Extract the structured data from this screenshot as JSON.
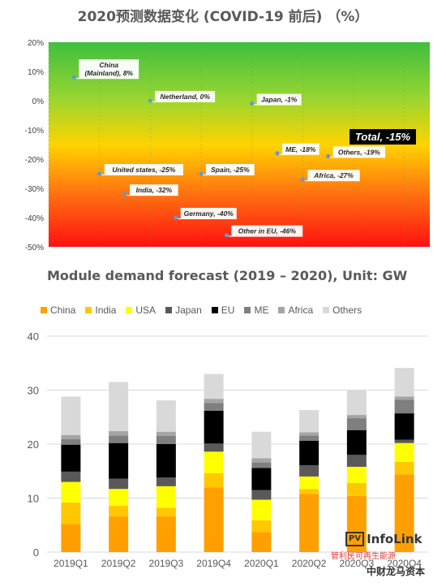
{
  "top": {
    "title": "2020预测数据变化 (COVID-19 前后) （%）",
    "chart_data": {
      "type": "scatter",
      "title": "2020预测数据变化 (COVID-19 前后) （%）",
      "ylim": [
        -50,
        20
      ],
      "y_ticks": [
        "20%",
        "10%",
        "0%",
        "-10%",
        "-20%",
        "-30%",
        "-40%",
        "-50%"
      ],
      "y_tick_values": [
        20,
        10,
        0,
        -10,
        -20,
        -30,
        -40,
        -50
      ],
      "x_ticks": [
        0,
        1,
        2,
        3,
        4,
        5,
        6,
        7
      ],
      "points": [
        {
          "label": "China\n(Mainland), 8%",
          "x": 0.5,
          "y": 8
        },
        {
          "label": "Netherland, 0%",
          "x": 2.0,
          "y": 0
        },
        {
          "label": "Japan, -1%",
          "x": 4.0,
          "y": -1
        },
        {
          "label": "ME, -18%",
          "x": 4.5,
          "y": -18
        },
        {
          "label": "Others, -19%",
          "x": 5.5,
          "y": -19
        },
        {
          "label": "Africa, -27%",
          "x": 5.0,
          "y": -27
        },
        {
          "label": "United states, -25%",
          "x": 1.0,
          "y": -25
        },
        {
          "label": "Spain, -25%",
          "x": 3.0,
          "y": -25
        },
        {
          "label": "India, -32%",
          "x": 1.5,
          "y": -32
        },
        {
          "label": "Germany, -40%",
          "x": 2.5,
          "y": -40
        },
        {
          "label": "Other in EU, -46%",
          "x": 3.5,
          "y": -46
        }
      ],
      "callout": "Total, -15%",
      "grid": "vertical",
      "background": "gradient green-yellow-red"
    }
  },
  "bottom": {
    "title": "Module demand forecast (2019 – 2020), Unit: GW",
    "chart_data": {
      "type": "bar",
      "stacked": true,
      "title": "Module demand forecast (2019 – 2020), Unit: GW",
      "categories": [
        "2019Q1",
        "2019Q2",
        "2019Q3",
        "2019Q4",
        "2020Q1",
        "2020Q2",
        "2020Q3",
        "2020Q4"
      ],
      "ylim": [
        0,
        40
      ],
      "y_ticks": [
        0,
        10,
        20,
        30,
        40
      ],
      "grid": "horizontal",
      "legend_position": "top",
      "series": [
        {
          "name": "China",
          "color": "#ffa000",
          "values": [
            5.2,
            6.6,
            6.6,
            12.0,
            3.7,
            10.8,
            10.4,
            14.4
          ]
        },
        {
          "name": "India",
          "color": "#ffc800",
          "values": [
            4.0,
            2.0,
            1.6,
            2.6,
            2.2,
            0.9,
            2.4,
            2.3
          ]
        },
        {
          "name": "USA",
          "color": "#ffff00",
          "values": [
            3.8,
            3.1,
            4.0,
            4.0,
            3.8,
            2.3,
            3.0,
            3.5
          ]
        },
        {
          "name": "Japan",
          "color": "#595959",
          "values": [
            1.9,
            1.9,
            1.6,
            1.5,
            1.8,
            2.1,
            2.2,
            0.6
          ]
        },
        {
          "name": "EU",
          "color": "#000000",
          "values": [
            5.0,
            6.6,
            6.2,
            6.1,
            4.1,
            4.5,
            4.6,
            4.9
          ]
        },
        {
          "name": "ME",
          "color": "#7f7f7f",
          "values": [
            1.0,
            1.4,
            1.5,
            1.4,
            1.0,
            1.0,
            2.2,
            2.5
          ]
        },
        {
          "name": "Africa",
          "color": "#a5a5a5",
          "values": [
            0.8,
            0.8,
            0.8,
            0.8,
            0.8,
            0.6,
            0.6,
            0.6
          ]
        },
        {
          "name": "Others",
          "color": "#d9d9d9",
          "values": [
            7.1,
            9.1,
            5.8,
            4.6,
            4.9,
            4.1,
            4.6,
            5.3
          ]
        }
      ]
    }
  },
  "watermark": {
    "logo_box": "PV",
    "logo_text": "InfoLink",
    "line1": "管利民可再生能源",
    "line2": "中财龙马资本"
  }
}
